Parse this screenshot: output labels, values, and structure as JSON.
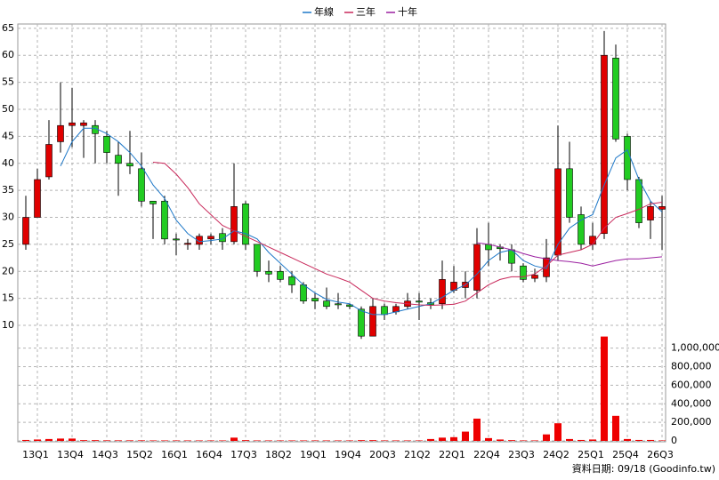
{
  "chart_data": {
    "type": "candlestick",
    "categories": [
      null,
      "13Q1",
      null,
      null,
      "13Q4",
      null,
      null,
      "14Q3",
      null,
      null,
      "15Q2",
      null,
      null,
      "16Q1",
      null,
      null,
      "16Q4",
      null,
      null,
      "17Q3",
      null,
      null,
      "18Q2",
      null,
      null,
      "19Q1",
      null,
      null,
      "19Q4",
      null,
      null,
      "20Q3",
      null,
      null,
      "21Q2",
      null,
      null,
      "22Q1",
      null,
      null,
      "22Q4",
      null,
      null,
      "23Q3",
      null,
      null,
      "24Q2",
      null,
      null,
      "25Q1",
      null,
      null,
      "25Q4",
      null,
      null,
      "26Q3"
    ],
    "open": [
      25,
      30,
      37.5,
      44,
      47,
      47,
      47,
      45,
      41.5,
      40,
      39,
      33,
      33,
      26,
      25,
      25,
      26,
      27,
      25.5,
      32.5,
      25,
      20,
      20,
      19,
      17.5,
      15,
      14.5,
      14,
      13.8,
      13,
      8,
      13.5,
      12.5,
      13.5,
      14.5,
      14.2,
      14,
      16.5,
      17,
      16.5,
      25,
      24.5,
      24,
      21,
      18.7,
      19,
      23,
      39,
      30.5,
      25,
      27,
      59.5,
      45,
      37,
      29.5,
      31.5
    ],
    "high": [
      34,
      39,
      48,
      55,
      54,
      48,
      48,
      46,
      44,
      46,
      42,
      33,
      34,
      27,
      26,
      27,
      27,
      28,
      40,
      33,
      25,
      22,
      21,
      20,
      18,
      16,
      17,
      16,
      14,
      13.5,
      15,
      14,
      14,
      16,
      16,
      15,
      22,
      21,
      20,
      28,
      29,
      25,
      25,
      21.5,
      20.5,
      26,
      47,
      44,
      32,
      29,
      64.5,
      62,
      45.5,
      37.5,
      33,
      34
    ],
    "low": [
      24,
      30,
      37,
      42,
      43,
      41,
      40,
      40,
      34,
      38,
      32,
      26,
      25,
      23,
      24,
      24,
      25,
      24,
      25,
      24,
      19,
      18,
      18,
      16,
      14,
      13,
      13,
      13,
      13,
      7.5,
      8,
      11,
      12,
      13,
      11,
      13,
      13,
      16,
      15,
      15,
      21,
      22,
      20,
      18,
      18,
      18,
      22,
      29,
      24,
      24,
      26,
      44,
      35,
      28,
      26,
      24
    ],
    "close": [
      30,
      37,
      43.5,
      47,
      47.5,
      47.5,
      45.5,
      42,
      40,
      39.5,
      33,
      32.5,
      26,
      25.8,
      25.2,
      26.5,
      26.5,
      25.5,
      32,
      25,
      20,
      19.5,
      18.5,
      17.5,
      14.5,
      14.5,
      13.5,
      13.8,
      13.5,
      8,
      13.5,
      12,
      13.5,
      14.5,
      14.3,
      13.8,
      18.5,
      18,
      18,
      25,
      24,
      24.2,
      21.5,
      18.5,
      19.3,
      22.5,
      39,
      30,
      25,
      26.5,
      60,
      44.5,
      37,
      29,
      32,
      32
    ],
    "up_color": "#e00000",
    "down_color": "#22cc22",
    "lines": [
      {
        "name": "年線",
        "color": "#1e78c8",
        "values": [
          null,
          null,
          null,
          39.5,
          44,
          46.5,
          46.5,
          45.5,
          44,
          42,
          39.5,
          36,
          33.5,
          29.5,
          27,
          25.5,
          25.7,
          26,
          27.5,
          27,
          26,
          23.5,
          21.5,
          19.5,
          17.5,
          16,
          14.8,
          14.3,
          14,
          12.7,
          12,
          12,
          12.5,
          13,
          13.5,
          14,
          15.2,
          16.5,
          17.5,
          19.5,
          22,
          23.5,
          24,
          22,
          21,
          20.5,
          25,
          28,
          29.5,
          30.5,
          36,
          41,
          42.5,
          37,
          33,
          31
        ]
      },
      {
        "name": "三年",
        "color": "#c8285a",
        "values": [
          null,
          null,
          null,
          null,
          null,
          null,
          null,
          null,
          null,
          null,
          null,
          40.2,
          40,
          38,
          35.5,
          32.5,
          30.5,
          28.5,
          27.5,
          26.5,
          25.5,
          24.5,
          23.5,
          22.5,
          21.5,
          20.5,
          19.5,
          18.8,
          18,
          16.5,
          15,
          14.5,
          14.2,
          14,
          13.8,
          13.7,
          13.8,
          13.9,
          14.5,
          16,
          17.5,
          18.5,
          19,
          19,
          19.5,
          21,
          23,
          23.5,
          24,
          25,
          28,
          30,
          30.7,
          31.5,
          32.5,
          32.8
        ]
      },
      {
        "name": "十年",
        "color": "#9b1fa0",
        "values": [
          null,
          null,
          null,
          null,
          null,
          null,
          null,
          null,
          null,
          null,
          null,
          null,
          null,
          null,
          null,
          null,
          null,
          null,
          null,
          null,
          null,
          null,
          null,
          null,
          null,
          null,
          null,
          null,
          null,
          null,
          null,
          null,
          null,
          null,
          null,
          null,
          null,
          null,
          null,
          25.3,
          25,
          24.5,
          24,
          23.3,
          22.7,
          22.3,
          22,
          21.8,
          21.5,
          21,
          21.5,
          22,
          22.3,
          22.3,
          22.5,
          22.7
        ]
      }
    ],
    "volume": [
      10000,
      15000,
      20000,
      25000,
      25000,
      8000,
      8000,
      6000,
      6000,
      6000,
      6000,
      5000,
      5000,
      5000,
      5000,
      5000,
      5000,
      5000,
      35000,
      8000,
      5000,
      5000,
      5000,
      5000,
      5000,
      5000,
      5000,
      5000,
      5000,
      8000,
      8000,
      5000,
      5000,
      5000,
      5000,
      20000,
      35000,
      40000,
      100000,
      240000,
      30000,
      15000,
      8000,
      5000,
      5000,
      70000,
      190000,
      20000,
      10000,
      15000,
      1125000,
      270000,
      20000,
      10000,
      10000,
      5000
    ],
    "volume_color": "#ee0000",
    "ylim": [
      7.7,
      65.8
    ],
    "yticks": [
      10,
      15,
      20,
      25,
      30,
      35,
      40,
      45,
      50,
      55,
      60,
      65
    ],
    "y2lim": [
      0,
      1150000
    ],
    "y2ticks": [
      0,
      {
        "value": 200000,
        "label": "200,000"
      },
      {
        "value": 400000,
        "label": "400,000"
      },
      {
        "value": 600000,
        "label": "600,000"
      },
      {
        "value": 800000,
        "label": "800,000"
      },
      {
        "value": 1000000,
        "label": "1,000,000"
      }
    ],
    "grid": true,
    "legend": "top",
    "footnote": "資料日期: 09/18 (Goodinfo.tw)"
  }
}
